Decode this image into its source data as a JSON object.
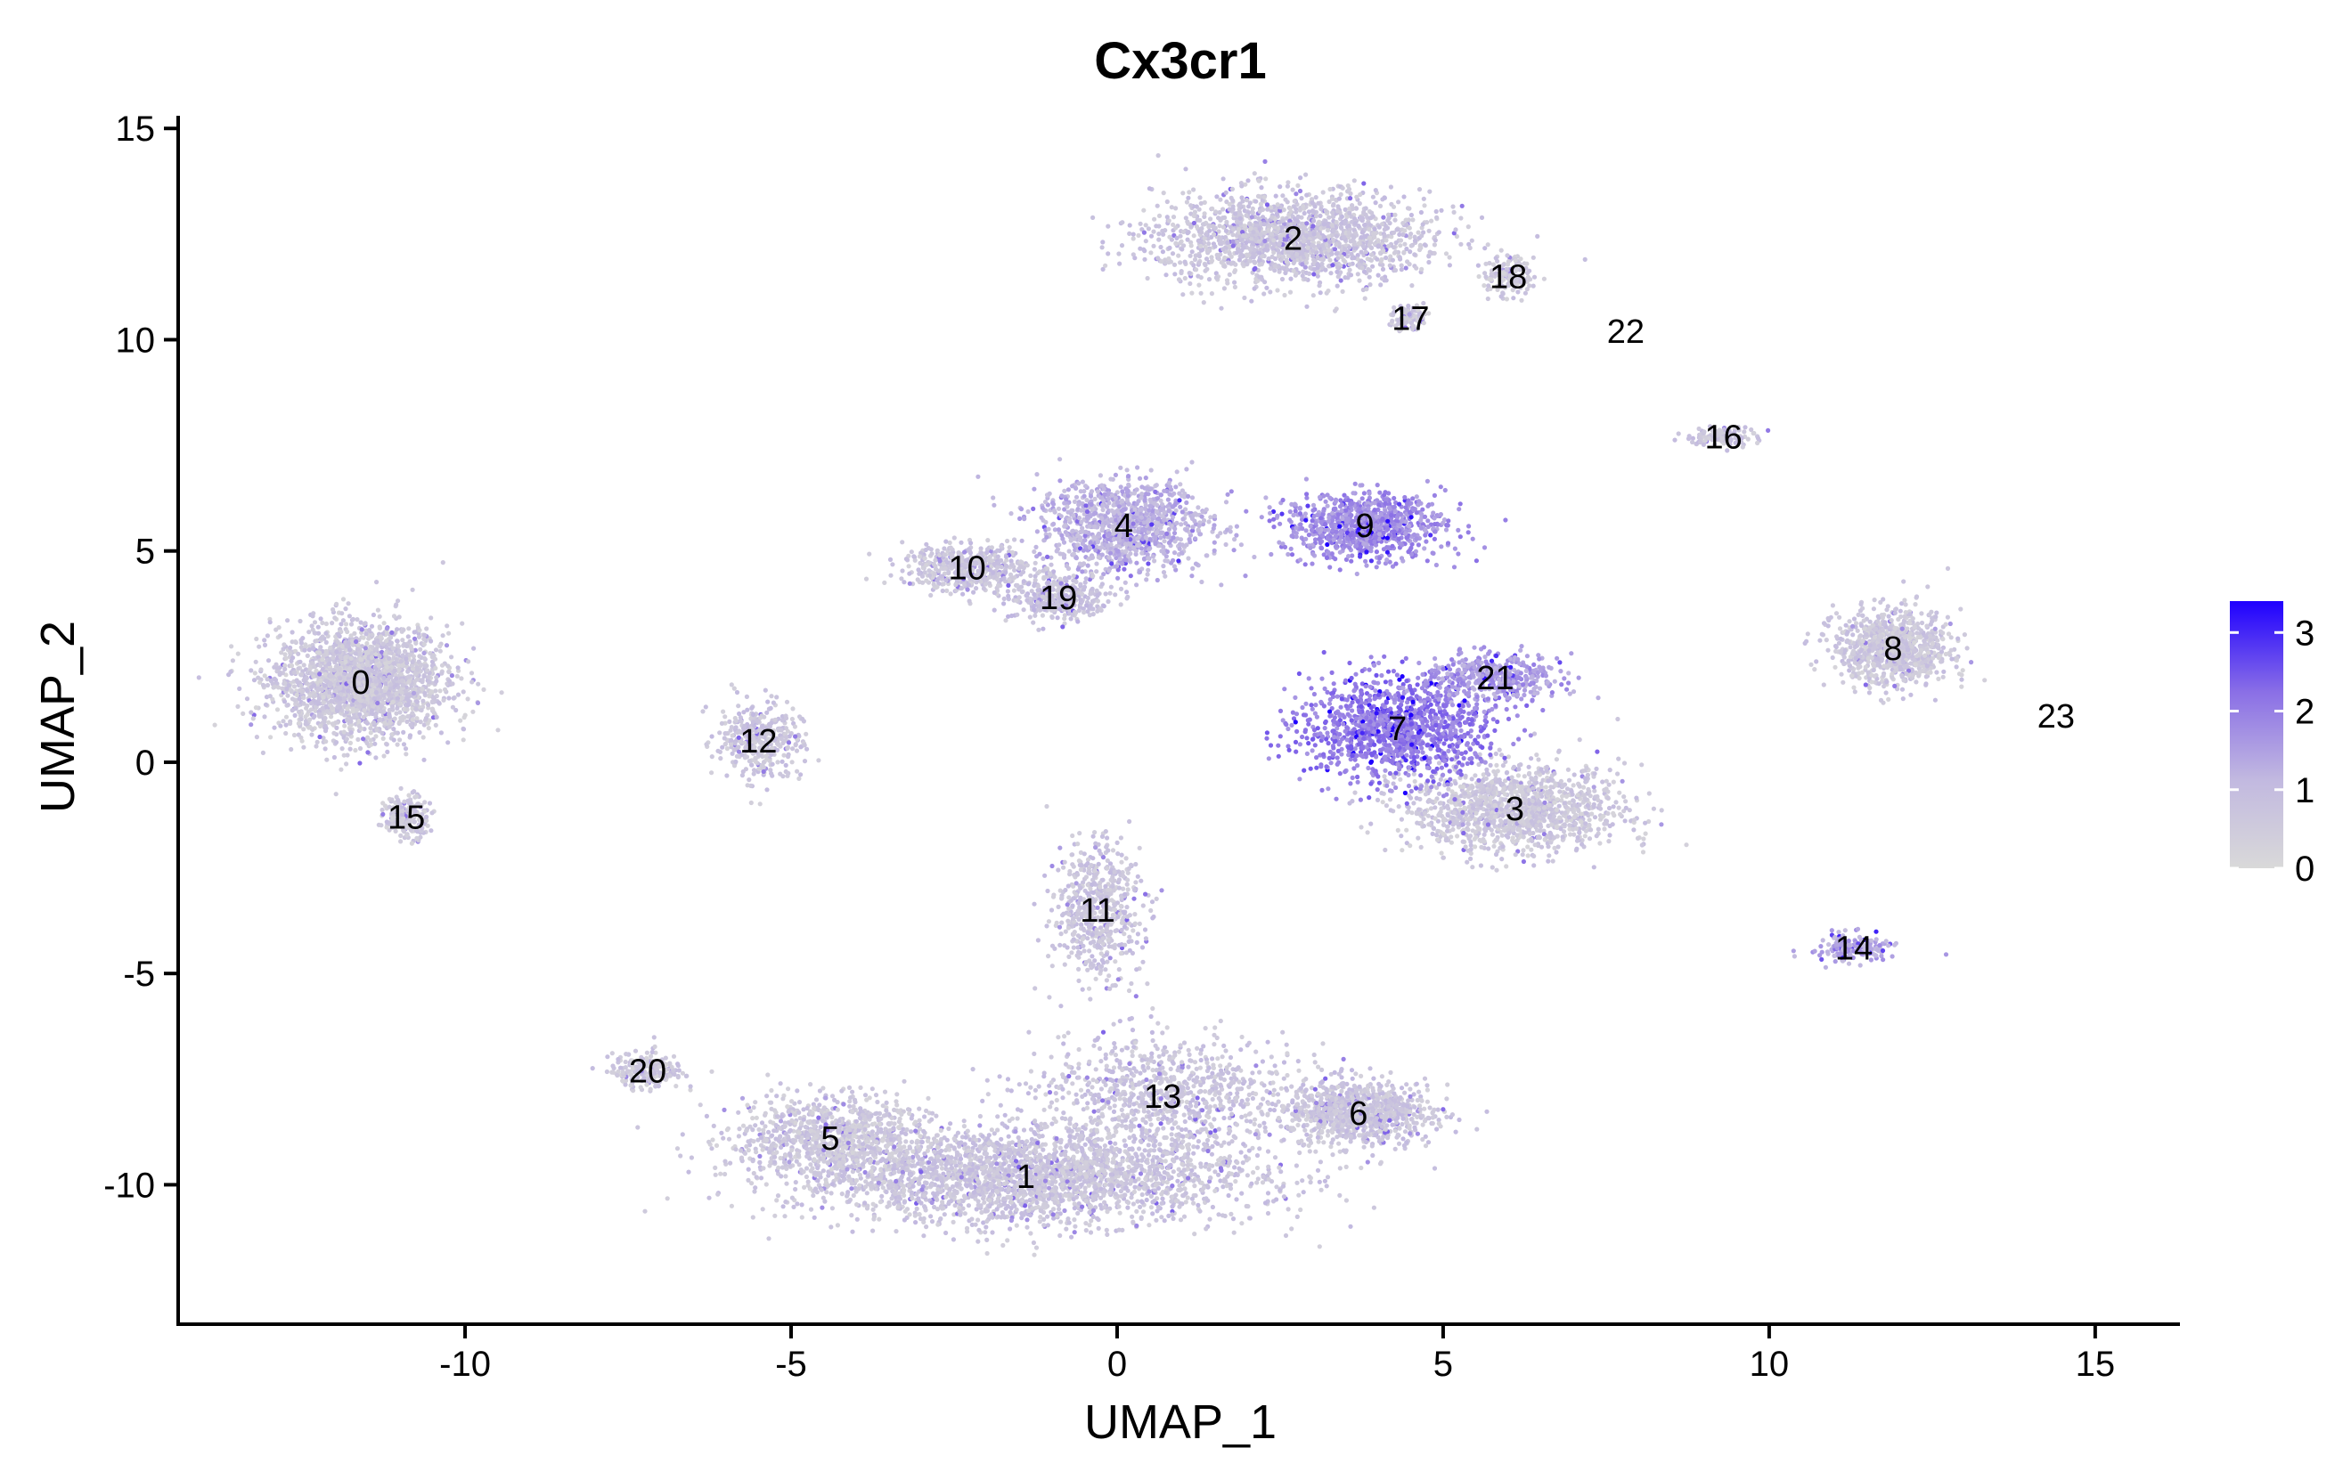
{
  "chart_data": {
    "type": "scatter",
    "title": "Cx3cr1",
    "xlabel": "UMAP_1",
    "ylabel": "UMAP_2",
    "xlim": [
      -14.4,
      16.3
    ],
    "ylim": [
      -13.3,
      15.3
    ],
    "x_ticks": [
      "-10",
      "-5",
      "0",
      "5",
      "10",
      "15"
    ],
    "y_ticks": [
      "-10",
      "-5",
      "0",
      "5",
      "10",
      "15"
    ],
    "grid": false,
    "legend": {
      "type": "colorbar",
      "placement": "right",
      "ticks": [
        "3",
        "2",
        "1",
        "0"
      ],
      "min": 0,
      "max": 3.4,
      "colors": [
        "#d9d9d9",
        "#c2b9e0",
        "#8a6fe6",
        "#1f00ff"
      ]
    },
    "clusters": [
      {
        "label": "0",
        "x": -11.6,
        "y": 1.9,
        "expression": 0.6
      },
      {
        "label": "1",
        "x": -1.4,
        "y": -9.8,
        "expression": 0.7
      },
      {
        "label": "2",
        "x": 2.7,
        "y": 12.4,
        "expression": 0.7
      },
      {
        "label": "3",
        "x": 6.1,
        "y": -1.1,
        "expression": 0.6
      },
      {
        "label": "4",
        "x": 0.1,
        "y": 5.6,
        "expression": 1.2
      },
      {
        "label": "5",
        "x": -4.4,
        "y": -8.9,
        "expression": 0.6
      },
      {
        "label": "6",
        "x": 3.7,
        "y": -8.3,
        "expression": 0.7
      },
      {
        "label": "7",
        "x": 4.3,
        "y": 0.8,
        "expression": 2.1
      },
      {
        "label": "8",
        "x": 11.9,
        "y": 2.7,
        "expression": 0.6
      },
      {
        "label": "9",
        "x": 3.8,
        "y": 5.6,
        "expression": 1.8
      },
      {
        "label": "10",
        "x": -2.3,
        "y": 4.6,
        "expression": 0.7
      },
      {
        "label": "11",
        "x": -0.3,
        "y": -3.5,
        "expression": 0.7
      },
      {
        "label": "12",
        "x": -5.5,
        "y": 0.5,
        "expression": 0.7
      },
      {
        "label": "13",
        "x": 0.7,
        "y": -7.9,
        "expression": 0.7
      },
      {
        "label": "14",
        "x": 11.3,
        "y": -4.4,
        "expression": 1.4
      },
      {
        "label": "15",
        "x": -10.9,
        "y": -1.3,
        "expression": 0.6
      },
      {
        "label": "16",
        "x": 9.3,
        "y": 7.7,
        "expression": 0.7
      },
      {
        "label": "17",
        "x": 4.5,
        "y": 10.5,
        "expression": 0.6
      },
      {
        "label": "18",
        "x": 6.0,
        "y": 11.5,
        "expression": 0.6
      },
      {
        "label": "19",
        "x": -0.9,
        "y": 3.9,
        "expression": 0.8
      },
      {
        "label": "20",
        "x": -7.2,
        "y": -7.3,
        "expression": 0.6
      },
      {
        "label": "21",
        "x": 5.8,
        "y": 2.0,
        "expression": 1.6
      },
      {
        "label": "22",
        "x": 7.8,
        "y": 10.2,
        "expression": 0.5
      },
      {
        "label": "23",
        "x": 14.4,
        "y": 1.1,
        "expression": 0.5
      }
    ]
  }
}
